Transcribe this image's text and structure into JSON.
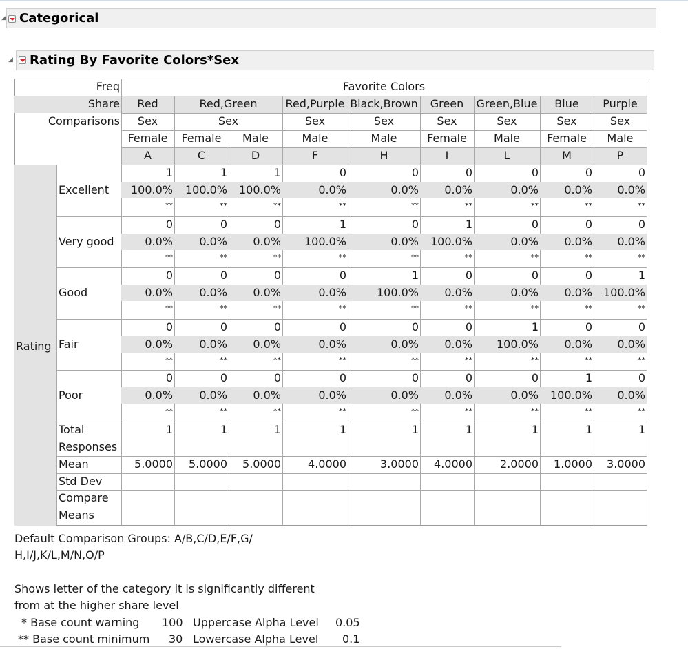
{
  "report": {
    "section_title": "Categorical",
    "subsection_title": "Rating By Favorite Colors*Sex"
  },
  "table": {
    "header_labels": {
      "freq": "Freq",
      "share": "Share",
      "comparisons": "Comparisons",
      "top": "Favorite Colors"
    },
    "colors": [
      {
        "name": "Red",
        "span": 1,
        "sex": "Sex"
      },
      {
        "name": "Red,Green",
        "span": 2,
        "sex": "Sex"
      },
      {
        "name": "Red,Purple",
        "span": 1,
        "sex": "Sex"
      },
      {
        "name": "Black,Brown",
        "span": 1,
        "sex": "Sex"
      },
      {
        "name": "Green",
        "span": 1,
        "sex": "Sex"
      },
      {
        "name": "Green,Blue",
        "span": 1,
        "sex": "Sex"
      },
      {
        "name": "Blue",
        "span": 1,
        "sex": "Sex"
      },
      {
        "name": "Purple",
        "span": 1,
        "sex": "Sex"
      }
    ],
    "columns": [
      {
        "sex": "Female",
        "letter": "A"
      },
      {
        "sex": "Female",
        "letter": "C"
      },
      {
        "sex": "Male",
        "letter": "D"
      },
      {
        "sex": "Male",
        "letter": "F"
      },
      {
        "sex": "Male",
        "letter": "H"
      },
      {
        "sex": "Female",
        "letter": "I"
      },
      {
        "sex": "Male",
        "letter": "L"
      },
      {
        "sex": "Female",
        "letter": "M"
      },
      {
        "sex": "Male",
        "letter": "P"
      }
    ],
    "row_group_label": "Rating",
    "rows": [
      {
        "label": "Excellent",
        "counts": [
          "1",
          "1",
          "1",
          "0",
          "0",
          "0",
          "0",
          "0",
          "0"
        ],
        "shares": [
          "100.0%",
          "100.0%",
          "100.0%",
          "0.0%",
          "0.0%",
          "0.0%",
          "0.0%",
          "0.0%",
          "0.0%"
        ],
        "flags": [
          "**",
          "**",
          "**",
          "**",
          "**",
          "**",
          "**",
          "**",
          "**"
        ]
      },
      {
        "label": "Very good",
        "counts": [
          "0",
          "0",
          "0",
          "1",
          "0",
          "1",
          "0",
          "0",
          "0"
        ],
        "shares": [
          "0.0%",
          "0.0%",
          "0.0%",
          "100.0%",
          "0.0%",
          "100.0%",
          "0.0%",
          "0.0%",
          "0.0%"
        ],
        "flags": [
          "**",
          "**",
          "**",
          "**",
          "**",
          "**",
          "**",
          "**",
          "**"
        ]
      },
      {
        "label": "Good",
        "counts": [
          "0",
          "0",
          "0",
          "0",
          "1",
          "0",
          "0",
          "0",
          "1"
        ],
        "shares": [
          "0.0%",
          "0.0%",
          "0.0%",
          "0.0%",
          "100.0%",
          "0.0%",
          "0.0%",
          "0.0%",
          "100.0%"
        ],
        "flags": [
          "**",
          "**",
          "**",
          "**",
          "**",
          "**",
          "**",
          "**",
          "**"
        ]
      },
      {
        "label": "Fair",
        "counts": [
          "0",
          "0",
          "0",
          "0",
          "0",
          "0",
          "1",
          "0",
          "0"
        ],
        "shares": [
          "0.0%",
          "0.0%",
          "0.0%",
          "0.0%",
          "0.0%",
          "0.0%",
          "100.0%",
          "0.0%",
          "0.0%"
        ],
        "flags": [
          "**",
          "**",
          "**",
          "**",
          "**",
          "**",
          "**",
          "**",
          "**"
        ]
      },
      {
        "label": "Poor",
        "counts": [
          "0",
          "0",
          "0",
          "0",
          "0",
          "0",
          "0",
          "1",
          "0"
        ],
        "shares": [
          "0.0%",
          "0.0%",
          "0.0%",
          "0.0%",
          "0.0%",
          "0.0%",
          "0.0%",
          "100.0%",
          "0.0%"
        ],
        "flags": [
          "**",
          "**",
          "**",
          "**",
          "**",
          "**",
          "**",
          "**",
          "**"
        ]
      }
    ],
    "summary": {
      "total_label_1": "Total",
      "total_label_2": "Responses",
      "total": [
        "1",
        "1",
        "1",
        "1",
        "1",
        "1",
        "1",
        "1",
        "1"
      ],
      "mean_label": "Mean",
      "mean": [
        "5.0000",
        "5.0000",
        "5.0000",
        "4.0000",
        "3.0000",
        "4.0000",
        "2.0000",
        "1.0000",
        "3.0000"
      ],
      "std_label": "Std Dev",
      "compare_label_1": "Compare",
      "compare_label_2": "Means"
    }
  },
  "notes": {
    "groups_line1": "Default Comparison Groups: A/B,C/D,E/F,G/",
    "groups_line2": "H,I/J,K/L,M/N,O/P",
    "shows_line1": "Shows letter of the category it is significantly different",
    "shows_line2": "from at the higher share level",
    "base_warning_label": "* Base count warning",
    "base_warning_value": "100",
    "base_min_label": "** Base count minimum",
    "base_min_value": "30",
    "upper_alpha_label": "Uppercase Alpha Level",
    "upper_alpha_value": "0.05",
    "lower_alpha_label": "Lowercase Alpha Level",
    "lower_alpha_value": "0.1"
  }
}
